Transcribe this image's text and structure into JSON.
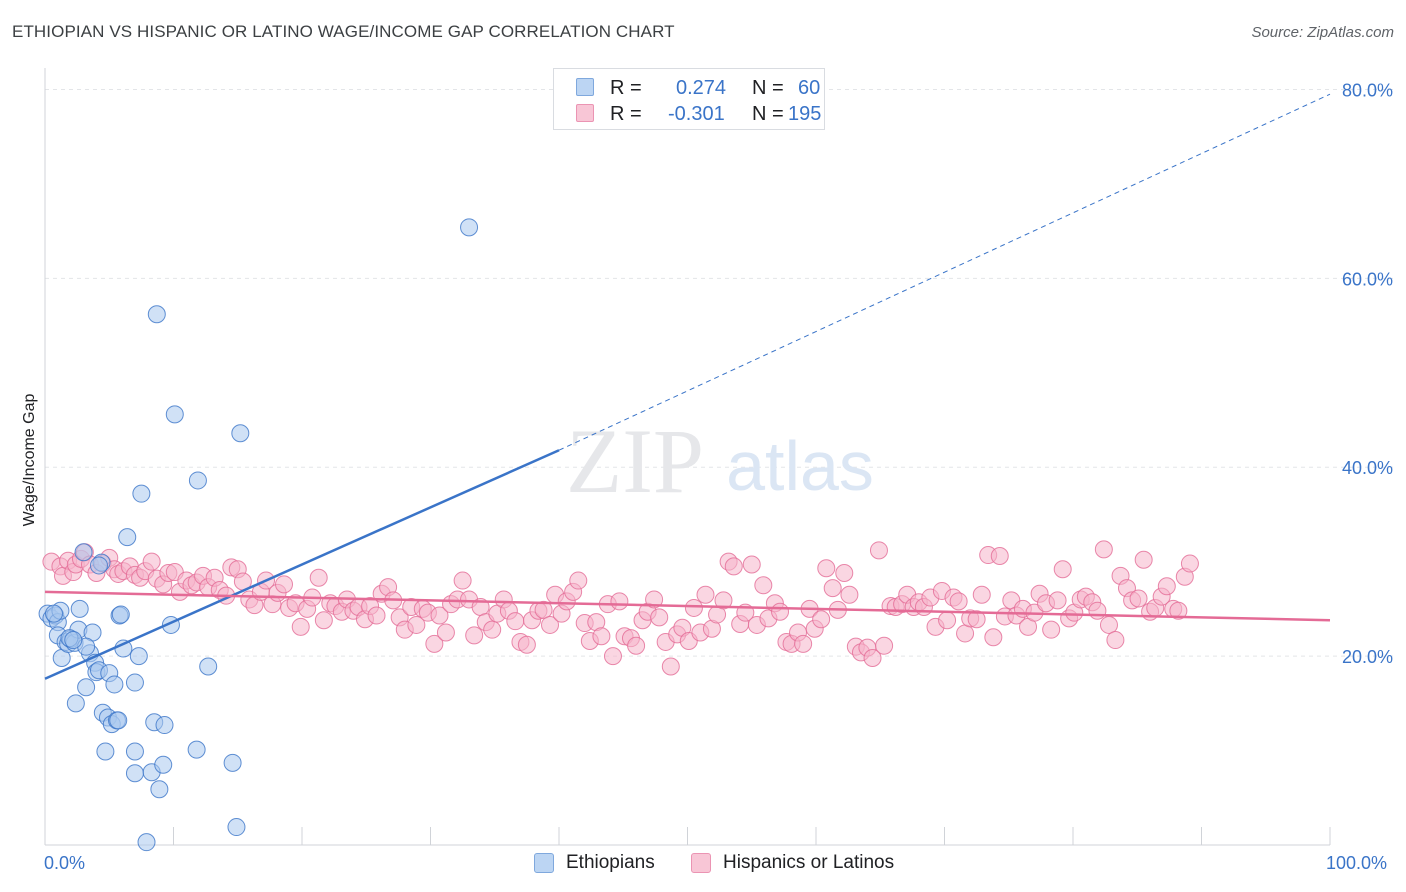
{
  "title": "ETHIOPIAN VS HISPANIC OR LATINO WAGE/INCOME GAP CORRELATION CHART",
  "source": "Source: ZipAtlas.com",
  "watermark": {
    "zip": "ZIP",
    "atlas": "atlas"
  },
  "stats": [
    {
      "r_label": "R =",
      "r_value": "0.274",
      "n_label": "N =",
      "n_value": "60"
    },
    {
      "r_label": "R =",
      "r_value": "-0.301",
      "n_label": "N =",
      "n_value": "195"
    }
  ],
  "legend": {
    "ethiopians": "Ethiopians",
    "hispanics": "Hispanics or Latinos"
  },
  "axis": {
    "x_min_label": "0.0%",
    "x_max_label": "100.0%",
    "ylabel": "Wage/Income Gap"
  },
  "colors": {
    "blue": "#3a74c8",
    "blue_fill": "#a9c8ef",
    "pink": "#e46b96",
    "pink_fill": "#f6b5cb",
    "grid": "#e3e5e8",
    "tick_text": "#3a74c8"
  },
  "chart_data": {
    "type": "scatter",
    "xlim": [
      0,
      100
    ],
    "ylim": [
      0,
      81
    ],
    "ytick_values": [
      20,
      40,
      60,
      80
    ],
    "ytick_labels": [
      "20.0%",
      "40.0%",
      "60.0%",
      "80.0%"
    ],
    "grid": "horizontal dashed",
    "legend_position": "bottom-center",
    "series": [
      {
        "name": "Ethiopians",
        "color": "#3a74c8",
        "r": 0.274,
        "n": 60,
        "trend": {
          "x0": 0,
          "y0": 17.6,
          "x1": 40,
          "y1": 41.8,
          "dashed_to_x": 100,
          "dashed_to_y": 79.5
        },
        "points": [
          [
            0.2,
            24.5
          ],
          [
            0.5,
            24.0
          ],
          [
            0.8,
            24.3
          ],
          [
            1.0,
            23.6
          ],
          [
            1.2,
            24.8
          ],
          [
            1.0,
            22.2
          ],
          [
            1.3,
            19.8
          ],
          [
            1.6,
            21.5
          ],
          [
            1.8,
            21.3
          ],
          [
            2.0,
            21.8
          ],
          [
            2.3,
            21.4
          ],
          [
            2.4,
            15.0
          ],
          [
            2.6,
            22.8
          ],
          [
            2.7,
            25.0
          ],
          [
            3.0,
            31.0
          ],
          [
            3.2,
            16.7
          ],
          [
            3.5,
            20.3
          ],
          [
            3.7,
            22.5
          ],
          [
            3.9,
            19.3
          ],
          [
            4.0,
            18.3
          ],
          [
            4.2,
            18.5
          ],
          [
            4.4,
            29.9
          ],
          [
            4.5,
            14.0
          ],
          [
            4.7,
            9.9
          ],
          [
            4.9,
            13.5
          ],
          [
            5.0,
            18.2
          ],
          [
            5.2,
            12.8
          ],
          [
            5.4,
            17.0
          ],
          [
            5.6,
            13.2
          ],
          [
            5.8,
            24.3
          ],
          [
            5.9,
            24.4
          ],
          [
            6.1,
            20.8
          ],
          [
            6.4,
            32.6
          ],
          [
            7.0,
            17.2
          ],
          [
            7.3,
            20.0
          ],
          [
            7.0,
            7.6
          ],
          [
            7.0,
            9.9
          ],
          [
            7.9,
            0.3
          ],
          [
            8.3,
            7.7
          ],
          [
            8.5,
            13.0
          ],
          [
            8.7,
            56.2
          ],
          [
            8.9,
            5.9
          ],
          [
            9.2,
            8.5
          ],
          [
            9.3,
            12.7
          ],
          [
            9.8,
            23.3
          ],
          [
            10.1,
            45.6
          ],
          [
            11.9,
            38.6
          ],
          [
            11.8,
            10.1
          ],
          [
            12.7,
            18.9
          ],
          [
            14.9,
            1.9
          ],
          [
            14.6,
            8.7
          ],
          [
            15.2,
            43.6
          ],
          [
            33.0,
            65.4
          ],
          [
            7.5,
            37.2
          ],
          [
            5.7,
            13.2
          ],
          [
            3.2,
            21.0
          ],
          [
            1.9,
            21.9
          ],
          [
            0.7,
            24.5
          ],
          [
            4.2,
            29.6
          ],
          [
            2.2,
            21.7
          ]
        ]
      },
      {
        "name": "Hispanics or Latinos",
        "color": "#e46b96",
        "r": -0.301,
        "n": 195,
        "trend": {
          "x0": 0,
          "y0": 26.8,
          "x1": 100,
          "y1": 23.8
        },
        "points": [
          [
            0.5,
            30.0
          ],
          [
            1.2,
            29.5
          ],
          [
            1.4,
            28.5
          ],
          [
            1.8,
            30.1
          ],
          [
            2.2,
            28.9
          ],
          [
            2.4,
            29.7
          ],
          [
            2.8,
            30.3
          ],
          [
            3.1,
            31.0
          ],
          [
            3.5,
            29.7
          ],
          [
            4.0,
            28.8
          ],
          [
            4.5,
            29.8
          ],
          [
            5.0,
            30.4
          ],
          [
            5.4,
            29.2
          ],
          [
            5.7,
            28.7
          ],
          [
            6.1,
            29.0
          ],
          [
            6.6,
            29.5
          ],
          [
            7.0,
            28.6
          ],
          [
            7.4,
            28.3
          ],
          [
            7.8,
            29.0
          ],
          [
            8.3,
            30.0
          ],
          [
            8.7,
            28.2
          ],
          [
            9.2,
            27.6
          ],
          [
            9.6,
            28.8
          ],
          [
            10.1,
            28.9
          ],
          [
            10.5,
            26.8
          ],
          [
            11.0,
            28.0
          ],
          [
            11.4,
            27.5
          ],
          [
            11.8,
            27.8
          ],
          [
            12.3,
            28.5
          ],
          [
            12.7,
            27.3
          ],
          [
            13.2,
            28.3
          ],
          [
            13.6,
            27.0
          ],
          [
            14.1,
            26.4
          ],
          [
            14.5,
            29.4
          ],
          [
            15.0,
            29.2
          ],
          [
            15.4,
            27.9
          ],
          [
            15.9,
            26.0
          ],
          [
            16.3,
            25.4
          ],
          [
            16.8,
            26.8
          ],
          [
            17.2,
            28.0
          ],
          [
            17.7,
            25.5
          ],
          [
            18.1,
            26.7
          ],
          [
            18.6,
            27.6
          ],
          [
            19.0,
            25.1
          ],
          [
            19.5,
            25.6
          ],
          [
            19.9,
            23.1
          ],
          [
            20.4,
            25.0
          ],
          [
            20.8,
            26.2
          ],
          [
            21.3,
            28.3
          ],
          [
            21.7,
            23.8
          ],
          [
            22.2,
            25.6
          ],
          [
            22.6,
            25.3
          ],
          [
            23.1,
            24.7
          ],
          [
            23.5,
            26.0
          ],
          [
            24.0,
            24.8
          ],
          [
            24.4,
            25.2
          ],
          [
            24.9,
            23.9
          ],
          [
            25.3,
            25.3
          ],
          [
            25.8,
            24.3
          ],
          [
            26.2,
            26.6
          ],
          [
            26.7,
            27.3
          ],
          [
            27.1,
            25.9
          ],
          [
            27.6,
            24.1
          ],
          [
            28.0,
            22.8
          ],
          [
            28.5,
            25.2
          ],
          [
            28.9,
            23.3
          ],
          [
            29.4,
            25.0
          ],
          [
            29.8,
            24.6
          ],
          [
            30.3,
            21.3
          ],
          [
            30.7,
            24.3
          ],
          [
            31.2,
            22.5
          ],
          [
            31.6,
            25.5
          ],
          [
            32.1,
            26.0
          ],
          [
            32.5,
            28.0
          ],
          [
            33.0,
            26.0
          ],
          [
            33.4,
            22.2
          ],
          [
            33.9,
            25.2
          ],
          [
            34.3,
            23.6
          ],
          [
            34.8,
            22.8
          ],
          [
            35.2,
            24.5
          ],
          [
            35.7,
            26.0
          ],
          [
            36.1,
            24.8
          ],
          [
            36.6,
            23.7
          ],
          [
            37.0,
            21.5
          ],
          [
            37.5,
            21.2
          ],
          [
            37.9,
            23.8
          ],
          [
            38.4,
            24.8
          ],
          [
            38.8,
            24.9
          ],
          [
            39.3,
            23.3
          ],
          [
            39.7,
            26.5
          ],
          [
            40.2,
            24.5
          ],
          [
            40.6,
            25.8
          ],
          [
            41.1,
            26.8
          ],
          [
            41.5,
            28.0
          ],
          [
            42.0,
            23.5
          ],
          [
            42.4,
            21.6
          ],
          [
            42.9,
            23.6
          ],
          [
            43.3,
            22.1
          ],
          [
            43.8,
            25.5
          ],
          [
            44.2,
            20.0
          ],
          [
            44.7,
            25.8
          ],
          [
            45.1,
            22.1
          ],
          [
            45.6,
            21.9
          ],
          [
            46.0,
            21.1
          ],
          [
            46.5,
            23.8
          ],
          [
            46.9,
            24.7
          ],
          [
            47.4,
            26.0
          ],
          [
            47.8,
            24.1
          ],
          [
            48.3,
            21.5
          ],
          [
            48.7,
            18.9
          ],
          [
            49.2,
            22.3
          ],
          [
            49.6,
            23.0
          ],
          [
            50.1,
            21.6
          ],
          [
            50.5,
            25.1
          ],
          [
            51.0,
            22.5
          ],
          [
            51.4,
            26.5
          ],
          [
            51.9,
            22.9
          ],
          [
            52.3,
            24.4
          ],
          [
            52.8,
            25.9
          ],
          [
            53.2,
            30.0
          ],
          [
            53.6,
            29.5
          ],
          [
            54.1,
            23.4
          ],
          [
            54.5,
            24.6
          ],
          [
            55.0,
            29.7
          ],
          [
            55.4,
            23.3
          ],
          [
            55.9,
            27.5
          ],
          [
            56.3,
            24.0
          ],
          [
            56.8,
            25.6
          ],
          [
            57.2,
            24.7
          ],
          [
            57.7,
            21.5
          ],
          [
            58.1,
            21.3
          ],
          [
            58.6,
            22.5
          ],
          [
            59.0,
            21.3
          ],
          [
            59.5,
            25.0
          ],
          [
            59.9,
            22.9
          ],
          [
            60.4,
            23.9
          ],
          [
            60.8,
            29.3
          ],
          [
            61.3,
            27.2
          ],
          [
            61.7,
            24.9
          ],
          [
            62.2,
            28.8
          ],
          [
            62.6,
            26.5
          ],
          [
            63.1,
            21.0
          ],
          [
            63.5,
            20.4
          ],
          [
            64.0,
            20.9
          ],
          [
            64.4,
            19.8
          ],
          [
            64.9,
            31.2
          ],
          [
            65.3,
            21.1
          ],
          [
            65.8,
            25.3
          ],
          [
            66.2,
            25.2
          ],
          [
            66.7,
            25.5
          ],
          [
            67.1,
            26.5
          ],
          [
            67.6,
            25.2
          ],
          [
            68.0,
            25.7
          ],
          [
            68.4,
            25.2
          ],
          [
            68.9,
            26.2
          ],
          [
            69.3,
            23.1
          ],
          [
            69.8,
            26.9
          ],
          [
            70.2,
            23.8
          ],
          [
            70.7,
            26.2
          ],
          [
            71.1,
            25.8
          ],
          [
            71.6,
            22.4
          ],
          [
            72.0,
            24.0
          ],
          [
            72.5,
            23.9
          ],
          [
            72.9,
            26.5
          ],
          [
            73.4,
            30.7
          ],
          [
            73.8,
            22.0
          ],
          [
            74.3,
            30.6
          ],
          [
            74.7,
            24.2
          ],
          [
            75.2,
            25.9
          ],
          [
            75.6,
            24.3
          ],
          [
            76.1,
            25.0
          ],
          [
            76.5,
            23.1
          ],
          [
            77.0,
            24.6
          ],
          [
            77.4,
            26.6
          ],
          [
            77.9,
            25.6
          ],
          [
            78.3,
            22.8
          ],
          [
            78.8,
            25.9
          ],
          [
            79.2,
            29.2
          ],
          [
            79.7,
            24.0
          ],
          [
            80.1,
            24.6
          ],
          [
            80.6,
            26.0
          ],
          [
            81.0,
            26.3
          ],
          [
            81.5,
            25.7
          ],
          [
            81.9,
            24.8
          ],
          [
            82.4,
            31.3
          ],
          [
            82.8,
            23.3
          ],
          [
            83.3,
            21.7
          ],
          [
            83.7,
            28.5
          ],
          [
            84.2,
            27.2
          ],
          [
            84.6,
            25.9
          ],
          [
            85.1,
            26.1
          ],
          [
            85.5,
            30.2
          ],
          [
            86.0,
            24.7
          ],
          [
            86.4,
            25.1
          ],
          [
            86.9,
            26.3
          ],
          [
            87.3,
            27.4
          ],
          [
            87.8,
            25.0
          ],
          [
            88.2,
            24.8
          ],
          [
            88.7,
            28.4
          ],
          [
            89.1,
            29.8
          ]
        ]
      }
    ]
  }
}
